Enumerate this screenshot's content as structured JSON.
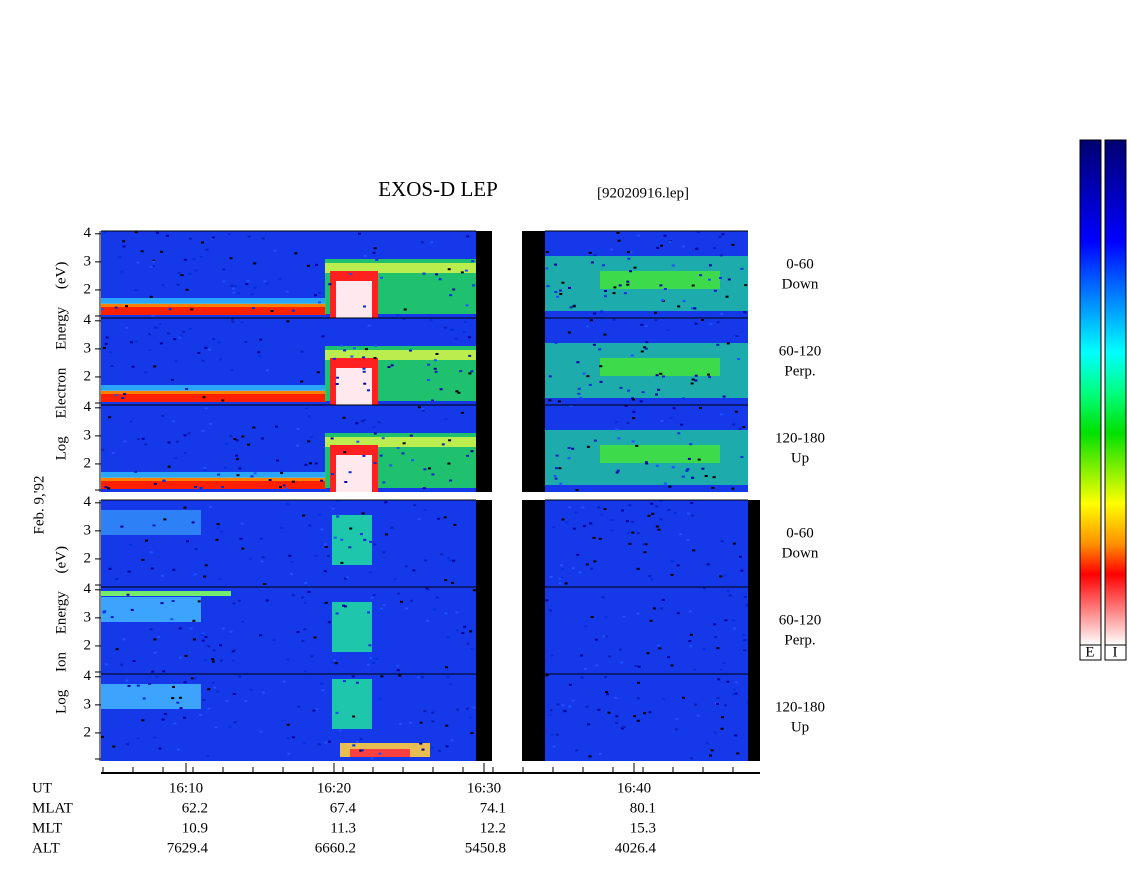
{
  "title": "EXOS-D LEP",
  "file": "[92020916.lep]",
  "date_label": "Feb. 9,'92",
  "panel_axis": {
    "ylim": [
      1,
      4.1
    ],
    "yticks": [
      2,
      3,
      4
    ]
  },
  "groups": [
    {
      "ylabel": "Log Electron Energy (eV)",
      "kind": "electron",
      "panels": [
        {
          "angle": "0-60",
          "direction": "Down"
        },
        {
          "angle": "60-120",
          "direction": "Perp."
        },
        {
          "angle": "120-180",
          "direction": "Up"
        }
      ]
    },
    {
      "ylabel": "Log Ion Energy (eV)",
      "kind": "ion",
      "panels": [
        {
          "angle": "0-60",
          "direction": "Down"
        },
        {
          "angle": "60-120",
          "direction": "Perp."
        },
        {
          "angle": "120-180",
          "direction": "Up"
        }
      ]
    }
  ],
  "ephemeris": {
    "row_names": [
      "UT",
      "MLAT",
      "MLT",
      "ALT"
    ],
    "times": [
      "16:10",
      "16:20",
      "16:30",
      "16:40"
    ],
    "MLAT": [
      62.2,
      67.4,
      74.1,
      80.1
    ],
    "MLT": [
      10.9,
      11.3,
      12.2,
      15.3
    ],
    "ALT": [
      7629.4,
      6660.2,
      5450.8,
      4026.4
    ]
  },
  "colorbar_labels": [
    "E",
    "I"
  ]
}
